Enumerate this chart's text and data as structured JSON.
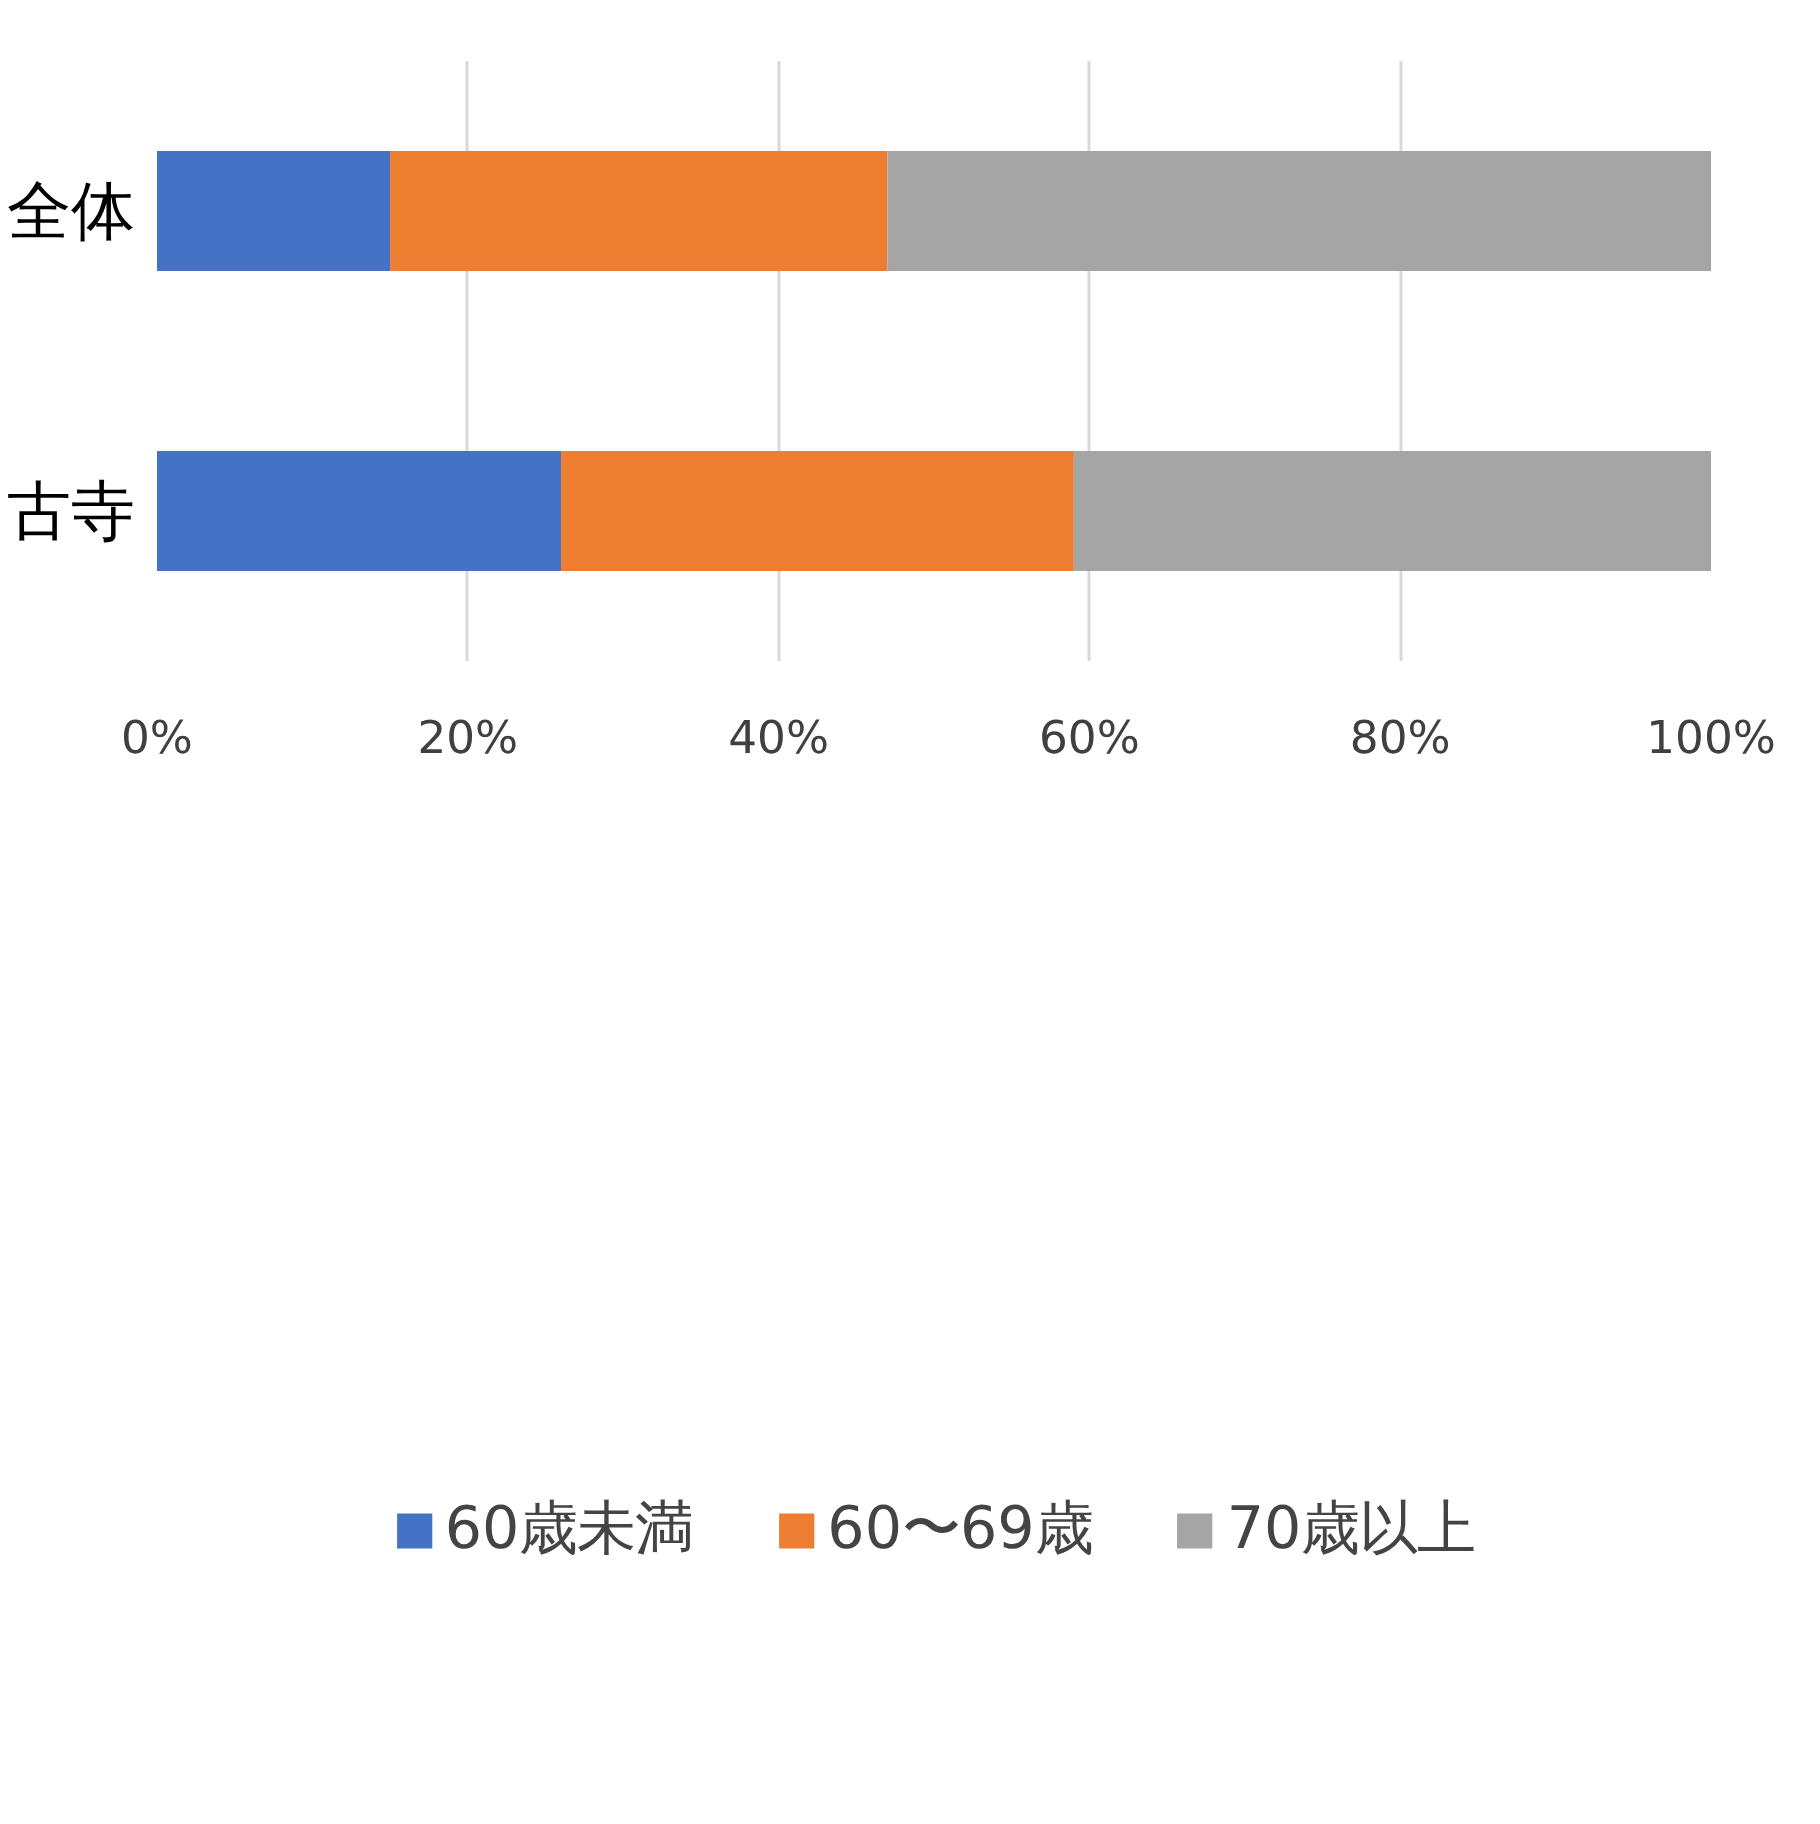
{
  "chart_data": {
    "type": "bar",
    "orientation": "horizontal",
    "stacked": true,
    "categories": [
      "全体",
      "古寺"
    ],
    "series": [
      {
        "name": "60歳未満",
        "color": "#4472c4",
        "values": [
          15,
          26
        ]
      },
      {
        "name": "60〜69歳",
        "color": "#ed7d31",
        "values": [
          32,
          33
        ]
      },
      {
        "name": "70歳以上",
        "color": "#a5a5a5",
        "values": [
          53,
          41
        ]
      }
    ],
    "xlim": [
      0,
      100
    ],
    "xticks": [
      {
        "value": 0,
        "label": "0%"
      },
      {
        "value": 20,
        "label": "20%"
      },
      {
        "value": 40,
        "label": "40%"
      },
      {
        "value": 60,
        "label": "60%"
      },
      {
        "value": 80,
        "label": "80%"
      },
      {
        "value": 100,
        "label": "100%"
      }
    ],
    "grid": "x",
    "legend": "bottom"
  }
}
